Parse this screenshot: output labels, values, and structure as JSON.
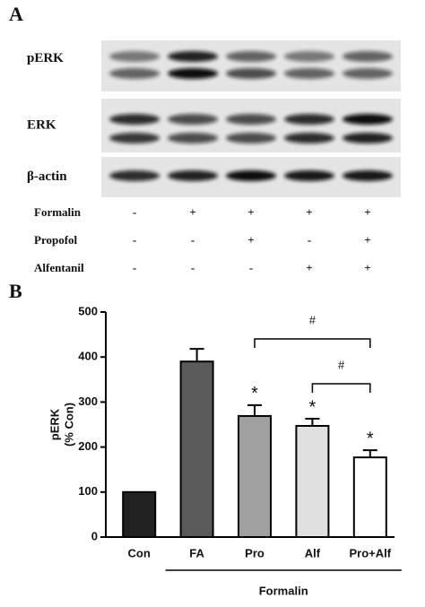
{
  "panel_a": {
    "label": "A",
    "blot_labels": [
      "pERK",
      "ERK",
      "β-actin"
    ],
    "treatments": [
      {
        "name": "Formalin",
        "marks": [
          "-",
          "+",
          "+",
          "+",
          "+"
        ]
      },
      {
        "name": "Propofol",
        "marks": [
          "-",
          "-",
          "+",
          "-",
          "+"
        ]
      },
      {
        "name": "Alfentanil",
        "marks": [
          "-",
          "-",
          "-",
          "+",
          "+"
        ]
      }
    ]
  },
  "chart_data": {
    "type": "bar",
    "panel_label": "B",
    "ylabel_lines": [
      "pERK",
      "(% Con)"
    ],
    "categories": [
      "Con",
      "FA",
      "Pro",
      "Alf",
      "Pro+Alf"
    ],
    "values": [
      100,
      390,
      269,
      247,
      177
    ],
    "errors": [
      0,
      28,
      24,
      16,
      16
    ],
    "colors": [
      "#222222",
      "#5a5a5a",
      "#a0a0a0",
      "#e0e0e0",
      "#ffffff"
    ],
    "value_annotations": [
      null,
      null,
      "*",
      "*",
      "*"
    ],
    "comparisons": [
      {
        "from": 2,
        "to": 4,
        "label": "#"
      },
      {
        "from": 3,
        "to": 4,
        "label": "#"
      }
    ],
    "group_label": "Formalin",
    "group_from": 1,
    "group_to": 4,
    "ylim": [
      0,
      500
    ],
    "yticks": [
      0,
      100,
      200,
      300,
      400,
      500
    ]
  }
}
